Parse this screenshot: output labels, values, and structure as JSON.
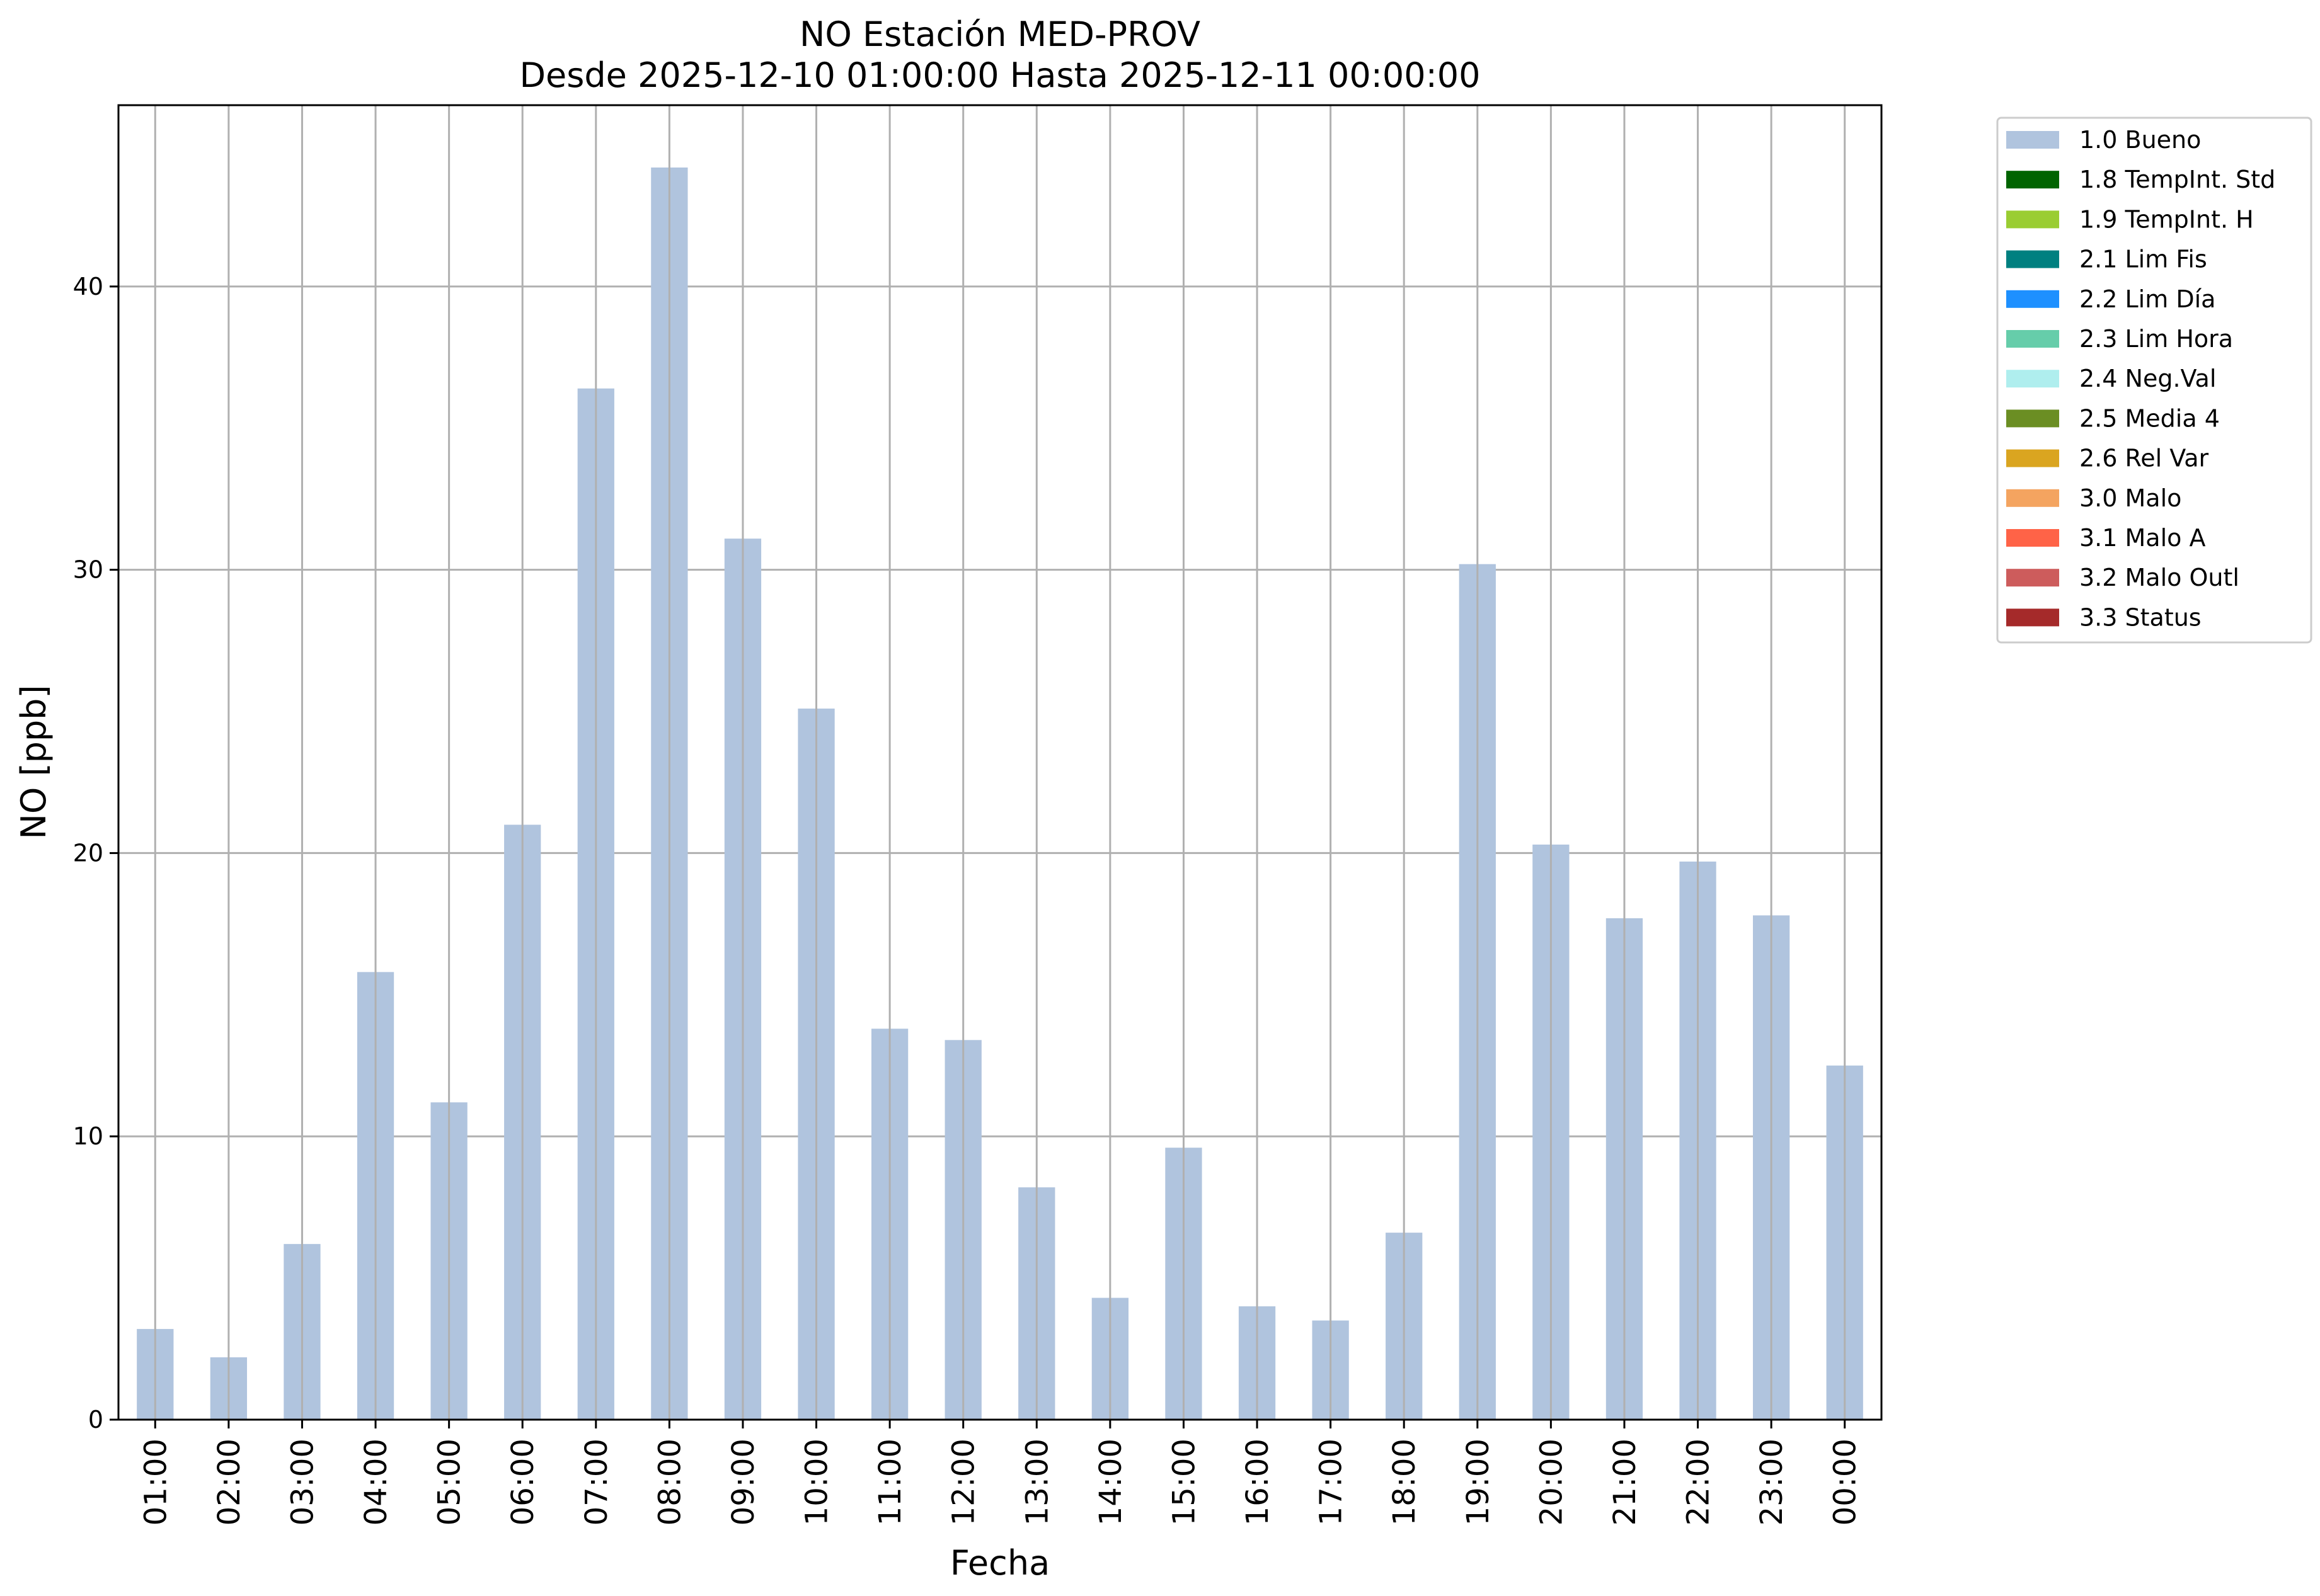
{
  "chart_data": {
    "type": "bar",
    "title": "NO Estación MED-PROV",
    "subtitle": "Desde 2025-12-10 01:00:00 Hasta 2025-12-11 00:00:00",
    "xlabel": "Fecha",
    "ylabel": "NO [ppb]",
    "ylim": [
      0,
      46.4
    ],
    "yticks": [
      0,
      10,
      20,
      30,
      40
    ],
    "grid": true,
    "legend_position": "outside-top-right",
    "categories": [
      "01:00",
      "02:00",
      "03:00",
      "04:00",
      "05:00",
      "06:00",
      "07:00",
      "08:00",
      "09:00",
      "10:00",
      "11:00",
      "12:00",
      "13:00",
      "14:00",
      "15:00",
      "16:00",
      "17:00",
      "18:00",
      "19:00",
      "20:00",
      "21:00",
      "22:00",
      "23:00",
      "00:00"
    ],
    "series": [
      {
        "name": "1.0 Bueno",
        "color": "#b0c4de",
        "values": [
          3.2,
          2.2,
          6.2,
          15.8,
          11.2,
          21.0,
          36.4,
          44.2,
          31.1,
          25.1,
          13.8,
          13.4,
          8.2,
          4.3,
          9.6,
          4.0,
          3.5,
          6.6,
          30.2,
          20.3,
          17.7,
          19.7,
          17.8,
          12.5
        ]
      }
    ],
    "legend": [
      {
        "label": "1.0 Bueno",
        "color": "#b0c4de"
      },
      {
        "label": "1.8 TempInt. Std",
        "color": "#006400"
      },
      {
        "label": "1.9 TempInt. H",
        "color": "#9acd32"
      },
      {
        "label": "2.1 Lim Fis",
        "color": "#008080"
      },
      {
        "label": "2.2 Lim Día",
        "color": "#1e90ff"
      },
      {
        "label": "2.3 Lim Hora",
        "color": "#66cdaa"
      },
      {
        "label": "2.4 Neg.Val",
        "color": "#afeeee"
      },
      {
        "label": "2.5 Media 4",
        "color": "#6b8e23"
      },
      {
        "label": "2.6 Rel Var",
        "color": "#daa520"
      },
      {
        "label": "3.0 Malo",
        "color": "#f4a460"
      },
      {
        "label": "3.1 Malo A",
        "color": "#ff6347"
      },
      {
        "label": "3.2 Malo Outl",
        "color": "#cd5c5c"
      },
      {
        "label": "3.3 Status",
        "color": "#a52a2a"
      }
    ]
  }
}
